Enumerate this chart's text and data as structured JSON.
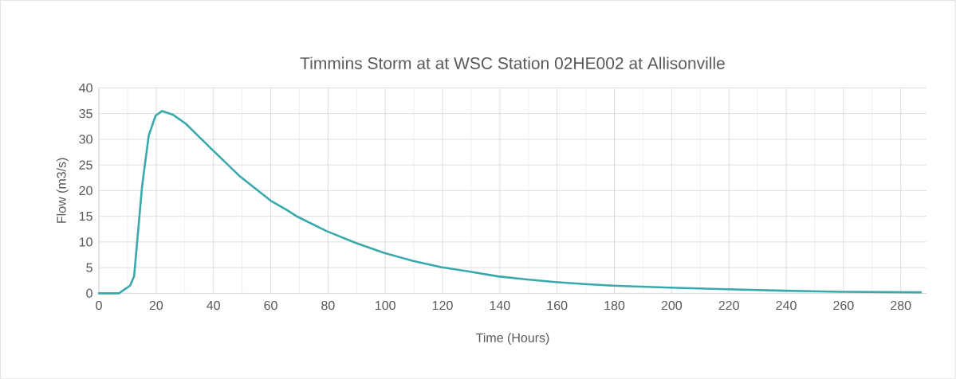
{
  "chart_data": {
    "type": "line",
    "title": "Timmins Storm at at WSC Station 02HE002 at Allisonville",
    "xlabel": "Time (Hours)",
    "ylabel": "Flow (m3/s)",
    "x": [
      0,
      7,
      10.9,
      12.3,
      15.1,
      17.4,
      19.8,
      22.1,
      25.8,
      30.4,
      39.7,
      49,
      60.1,
      65.7,
      69.4,
      79.6,
      89.8,
      99.5,
      109.7,
      119.5,
      129.7,
      139.4,
      149.6,
      159.4,
      169.6,
      179.3,
      199.3,
      219.2,
      239.2,
      259.1,
      287
    ],
    "series": [
      {
        "color": "#3aa9ad",
        "values": [
          0,
          0,
          1.5,
          3.3,
          20.9,
          30.7,
          34.6,
          35.5,
          34.8,
          33,
          27.9,
          22.9,
          18,
          16.2,
          14.9,
          12.1,
          9.8,
          7.9,
          6.3,
          5.1,
          4.2,
          3.3,
          2.7,
          2.2,
          1.8,
          1.5,
          1.1,
          0.8,
          0.5,
          0.3,
          0.2
        ]
      }
    ],
    "xlim": [
      0,
      289
    ],
    "ylim": [
      0,
      40
    ],
    "xticks": [
      0,
      20,
      40,
      60,
      80,
      100,
      120,
      140,
      160,
      180,
      200,
      220,
      240,
      260,
      280
    ],
    "yticks": [
      0,
      5,
      10,
      15,
      20,
      25,
      30,
      35,
      40
    ],
    "grid": true,
    "marker": "none",
    "line_style": "solid"
  }
}
